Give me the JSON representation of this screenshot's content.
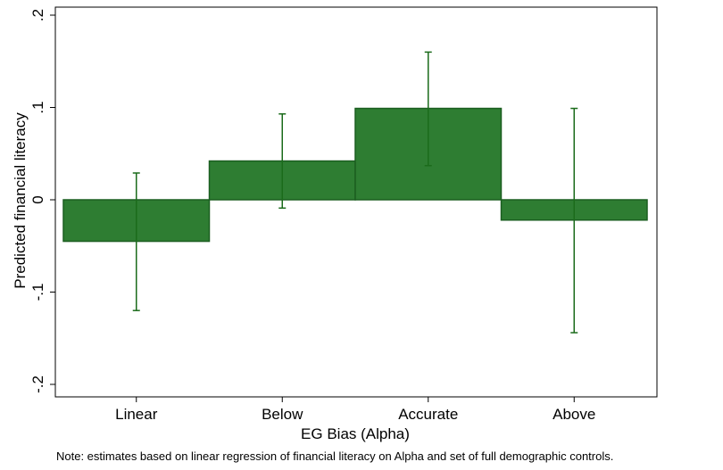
{
  "chart_data": {
    "type": "bar",
    "categories": [
      "Linear",
      "Below",
      "Accurate",
      "Above"
    ],
    "values": [
      -0.045,
      0.042,
      0.099,
      -0.022
    ],
    "ci_lower": [
      -0.12,
      -0.009,
      0.037,
      -0.144
    ],
    "ci_upper": [
      0.029,
      0.093,
      0.16,
      0.099
    ],
    "xlabel": "EG Bias (Alpha)",
    "ylabel": "Predicted financial literacy",
    "ylim": [
      -0.2,
      0.2
    ],
    "yticks": [
      -0.2,
      -0.1,
      0,
      0.1,
      0.2
    ],
    "ytick_labels": [
      "-.2",
      "-.1",
      "0",
      ".1",
      ".2"
    ],
    "grid": false,
    "bar_color": "#2e7d32",
    "bar_edge_color": "#1b5e20",
    "errorbar_color": "#1b6b1b",
    "note": "Note: estimates based on linear regression of financial literacy on Alpha and set of full demographic controls."
  }
}
